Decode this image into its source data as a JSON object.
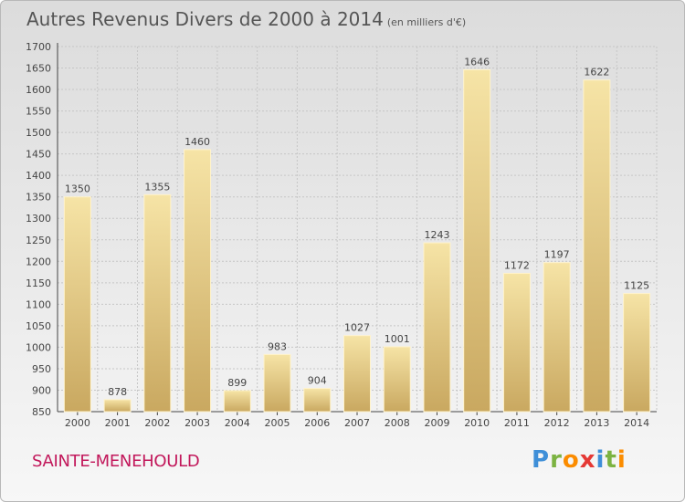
{
  "header": {
    "title": "Autres Revenus Divers de 2000 à 2014",
    "unit": "(en milliers d'€)"
  },
  "footer": {
    "town": "SAINTE-MENEHOULD",
    "logo": "Proxiti"
  },
  "colors": {
    "bar": "#e8cd85",
    "bar_light": "#f6e4a6",
    "bar_dark": "#c9a860",
    "town": "#c2185b"
  },
  "chart_data": {
    "type": "bar",
    "categories": [
      "2000",
      "2001",
      "2002",
      "2003",
      "2004",
      "2005",
      "2006",
      "2007",
      "2008",
      "2009",
      "2010",
      "2011",
      "2012",
      "2013",
      "2014"
    ],
    "values": [
      1350,
      878,
      1355,
      1460,
      899,
      983,
      904,
      1027,
      1001,
      1243,
      1646,
      1172,
      1197,
      1622,
      1125
    ],
    "ylim": [
      850,
      1700
    ],
    "yticks": [
      850,
      900,
      950,
      1000,
      1050,
      1100,
      1150,
      1200,
      1250,
      1300,
      1350,
      1400,
      1450,
      1500,
      1550,
      1600,
      1650,
      1700
    ],
    "grid": true,
    "data_labels": true
  }
}
